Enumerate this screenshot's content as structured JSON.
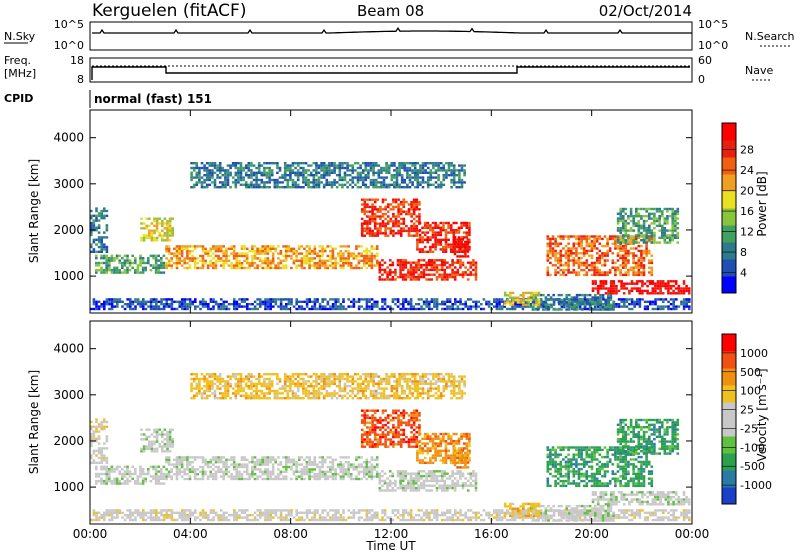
{
  "header": {
    "station": "Kerguelen (fitACF)",
    "beam": "Beam 08",
    "date": "02/Oct/2014"
  },
  "noise_panel": {
    "left_label": "N.Sky",
    "left_ticks": [
      "10^5",
      "10^0"
    ],
    "right_ticks": [
      "10^5",
      "10^0"
    ],
    "right_label": "N.Search"
  },
  "freq_panel": {
    "left_label_line1": "Freq.",
    "left_label_line2": "[MHz]",
    "left_ticks": [
      "18",
      "8"
    ],
    "right_ticks": [
      "60",
      "0"
    ],
    "right_label": "Nave"
  },
  "cpid_panel": {
    "label": "CPID",
    "program": "normal (fast) 151"
  },
  "time_axis": {
    "title": "Time UT",
    "ticks": [
      "00:00",
      "04:00",
      "08:00",
      "12:00",
      "16:00",
      "20:00",
      "00:00"
    ]
  },
  "chart_data": [
    {
      "type": "heatmap",
      "name": "power",
      "ylabel": "Slant Range [km]",
      "yticks": [
        "1000",
        "2000",
        "3000",
        "4000"
      ],
      "ylim": [
        200,
        4600
      ],
      "xlim_hours": [
        0,
        24
      ],
      "colorbar": {
        "label": "Power [dB]",
        "ticks": [
          "4",
          "8",
          "12",
          "16",
          "20",
          "24",
          "28"
        ],
        "colors": [
          "#0000ff",
          "#1f4fb3",
          "#2d7a8c",
          "#3fa060",
          "#88c43c",
          "#e8e020",
          "#f0a020",
          "#f06010",
          "#e82010",
          "#ff0000"
        ]
      }
    },
    {
      "type": "heatmap",
      "name": "velocity",
      "ylabel": "Slant Range [km]",
      "yticks": [
        "1000",
        "2000",
        "3000",
        "4000"
      ],
      "ylim": [
        200,
        4600
      ],
      "xlim_hours": [
        0,
        24
      ],
      "colorbar": {
        "label": "Velocity [m s⁻¹]",
        "ticks": [
          "1000",
          "500",
          "100",
          "25",
          "-25",
          "-100",
          "-500",
          "-1000"
        ],
        "colors": [
          "#1a3fc8",
          "#2a7aa8",
          "#2aa050",
          "#60c040",
          "#c8c8c8",
          "#c8c8c8",
          "#f0c020",
          "#f09010",
          "#f05010",
          "#ff0000"
        ]
      }
    }
  ]
}
